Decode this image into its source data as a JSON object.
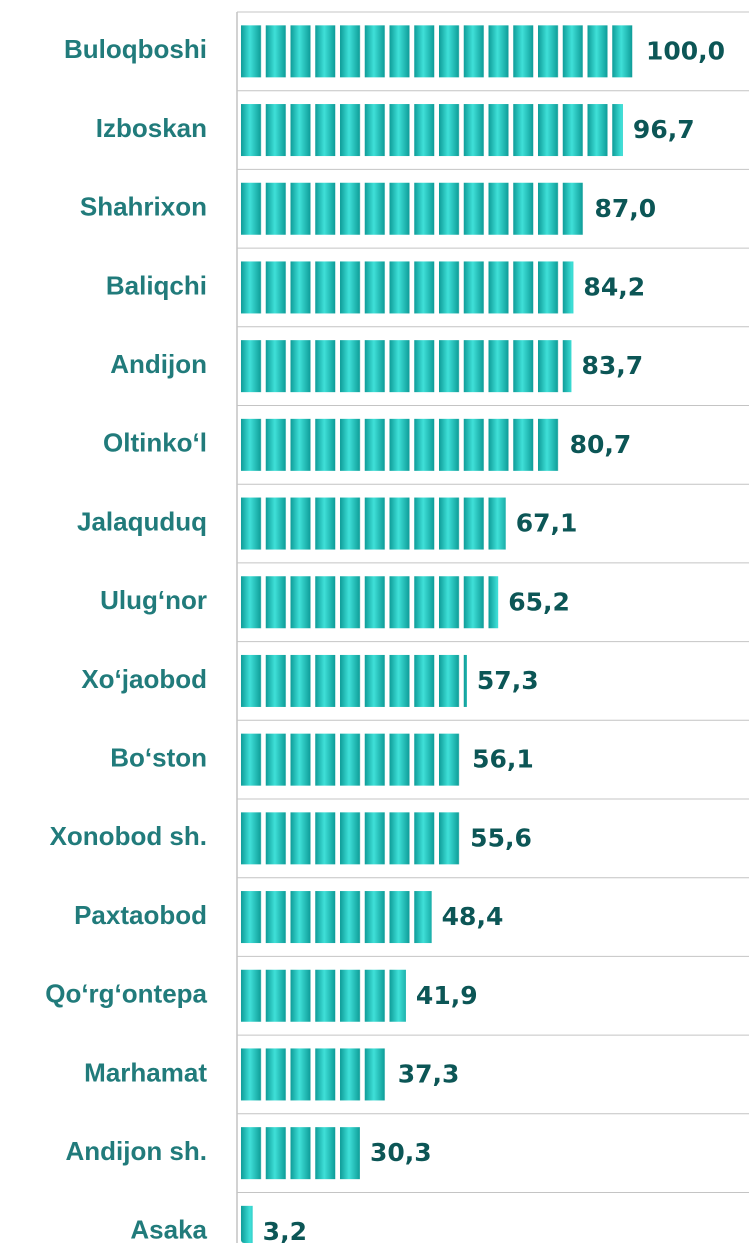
{
  "chart_data": {
    "type": "bar",
    "orientation": "horizontal",
    "categories": [
      "Buloqboshi",
      "Izboskan",
      "Shahrixon",
      "Baliqchi",
      "Andijon",
      "Oltinko‘l",
      "Jalaquduq",
      "Ulug‘nor",
      "Xo‘jaobod",
      "Bo‘ston",
      "Xonobod sh.",
      "Paxtaobod",
      "Qo‘rg‘ontepa",
      "Marhamat",
      "Andijon sh.",
      "Asaka"
    ],
    "values": [
      100.0,
      96.7,
      87.0,
      84.2,
      83.7,
      80.7,
      67.1,
      65.2,
      57.3,
      56.1,
      55.6,
      48.4,
      41.9,
      37.3,
      30.3,
      3.2
    ],
    "value_labels": [
      "100,0",
      "96,7",
      "87,0",
      "84,2",
      "83,7",
      "80,7",
      "67,1",
      "65,2",
      "57,3",
      "56,1",
      "55,6",
      "48,4",
      "41,9",
      "37,3",
      "30,3",
      "3,2"
    ],
    "color": "#17bcb7",
    "xlim": [
      0,
      100
    ]
  }
}
